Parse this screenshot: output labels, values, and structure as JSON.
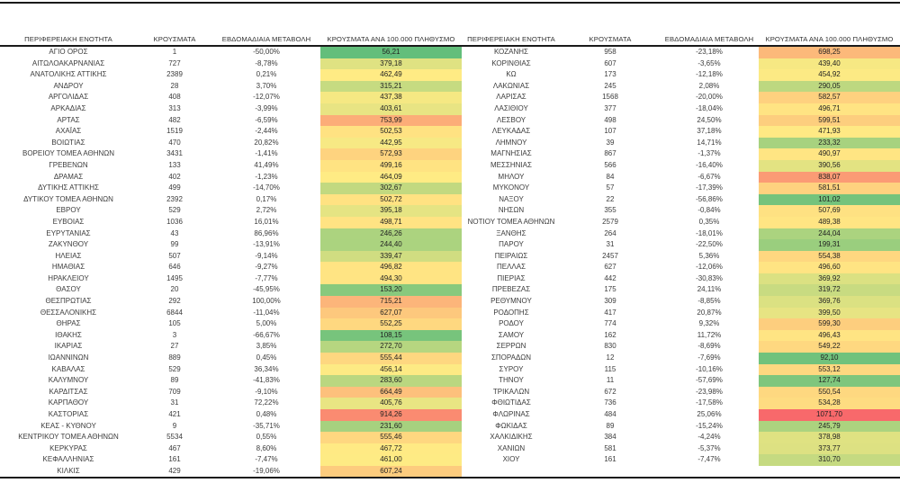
{
  "page": {
    "background": "#ffffff",
    "rule_color": "#1a1a1a"
  },
  "chart_data": {
    "type": "table",
    "columns": [
      "ΠΕΡΙΦΕΡΕΙΑΚΗ ΕΝΟΤΗΤΑ",
      "ΚΡΟΥΣΜΑΤΑ",
      "ΕΒΔΟΜΑΔΙΑΙΑ ΜΕΤΑΒΟΛΗ",
      "ΚΡΟΥΣΜΑΤΑ ΑΝΑ 100.000 ΠΛΗΘΥΣΜΟ"
    ],
    "color_scale": {
      "applies_to_column": "ΚΡΟΥΣΜΑΤΑ ΑΝΑ 100.000 ΠΛΗΘΥΣΜΟ",
      "min_color": "#63BE7B",
      "mid_color": "#FFEB84",
      "max_color": "#F8696B"
    },
    "tables": [
      {
        "rows": [
          [
            "ΑΓΙΟ ΟΡΟΣ",
            1,
            "-50,00%",
            "56,21"
          ],
          [
            "ΑΙΤΩΛΟΑΚΑΡΝΑΝΙΑΣ",
            727,
            "-8,78%",
            "379,18"
          ],
          [
            "ΑΝΑΤΟΛΙΚΗΣ ΑΤΤΙΚΗΣ",
            2389,
            "0,21%",
            "462,49"
          ],
          [
            "ΑΝΔΡΟΥ",
            28,
            "3,70%",
            "315,21"
          ],
          [
            "ΑΡΓΟΛΙΔΑΣ",
            408,
            "-12,07%",
            "437,38"
          ],
          [
            "ΑΡΚΑΔΙΑΣ",
            313,
            "-3,99%",
            "403,61"
          ],
          [
            "ΑΡΤΑΣ",
            482,
            "-6,59%",
            "753,99"
          ],
          [
            "ΑΧΑΪΑΣ",
            1519,
            "-2,44%",
            "502,53"
          ],
          [
            "ΒΟΙΩΤΙΑΣ",
            470,
            "20,82%",
            "442,95"
          ],
          [
            "ΒΟΡΕΙΟΥ ΤΟΜΕΑ ΑΘΗΝΩΝ",
            3431,
            "-1,41%",
            "572,93"
          ],
          [
            "ΓΡΕΒΕΝΩΝ",
            133,
            "41,49%",
            "499,16"
          ],
          [
            "ΔΡΑΜΑΣ",
            402,
            "-1,23%",
            "464,09"
          ],
          [
            "ΔΥΤΙΚΗΣ ΑΤΤΙΚΗΣ",
            499,
            "-14,70%",
            "302,67"
          ],
          [
            "ΔΥΤΙΚΟΥ ΤΟΜΕΑ ΑΘΗΝΩΝ",
            2392,
            "0,17%",
            "502,72"
          ],
          [
            "ΕΒΡΟΥ",
            529,
            "2,72%",
            "395,18"
          ],
          [
            "ΕΥΒΟΙΑΣ",
            1036,
            "16,01%",
            "498,71"
          ],
          [
            "ΕΥΡΥΤΑΝΙΑΣ",
            43,
            "86,96%",
            "246,26"
          ],
          [
            "ΖΑΚΥΝΘΟΥ",
            99,
            "-13,91%",
            "244,40"
          ],
          [
            "ΗΛΕΙΑΣ",
            507,
            "-9,14%",
            "339,47"
          ],
          [
            "ΗΜΑΘΙΑΣ",
            646,
            "-9,27%",
            "496,82"
          ],
          [
            "ΗΡΑΚΛΕΙΟΥ",
            1495,
            "-7,77%",
            "494,30"
          ],
          [
            "ΘΑΣΟΥ",
            20,
            "-45,95%",
            "153,20"
          ],
          [
            "ΘΕΣΠΡΩΤΙΑΣ",
            292,
            "100,00%",
            "715,21"
          ],
          [
            "ΘΕΣΣΑΛΟΝΙΚΗΣ",
            6844,
            "-11,04%",
            "627,07"
          ],
          [
            "ΘΗΡΑΣ",
            105,
            "5,00%",
            "552,25"
          ],
          [
            "ΙΘΑΚΗΣ",
            3,
            "-66,67%",
            "108,15"
          ],
          [
            "ΙΚΑΡΙΑΣ",
            27,
            "3,85%",
            "272,70"
          ],
          [
            "ΙΩΑΝΝΙΝΩΝ",
            889,
            "0,45%",
            "555,44"
          ],
          [
            "ΚΑΒΑΛΑΣ",
            529,
            "36,34%",
            "456,14"
          ],
          [
            "ΚΑΛΥΜΝΟΥ",
            89,
            "-41,83%",
            "283,60"
          ],
          [
            "ΚΑΡΔΙΤΣΑΣ",
            709,
            "-9,10%",
            "664,49"
          ],
          [
            "ΚΑΡΠΑΘΟΥ",
            31,
            "72,22%",
            "405,76"
          ],
          [
            "ΚΑΣΤΟΡΙΑΣ",
            421,
            "0,48%",
            "914,26"
          ],
          [
            "ΚΕΑΣ - ΚΥΘΝΟΥ",
            9,
            "-35,71%",
            "231,60"
          ],
          [
            "ΚΕΝΤΡΙΚΟΥ ΤΟΜΕΑ ΑΘΗΝΩΝ",
            5534,
            "0,55%",
            "555,46"
          ],
          [
            "ΚΕΡΚΥΡΑΣ",
            467,
            "8,60%",
            "467,72"
          ],
          [
            "ΚΕΦΑΛΛΗΝΙΑΣ",
            161,
            "-7,47%",
            "461,00"
          ],
          [
            "ΚΙΛΚΙΣ",
            429,
            "-19,06%",
            "607,24"
          ]
        ]
      },
      {
        "rows": [
          [
            "ΚΟΖΑΝΗΣ",
            958,
            "-23,18%",
            "698,25"
          ],
          [
            "ΚΟΡΙΝΘΙΑΣ",
            607,
            "-3,65%",
            "439,40"
          ],
          [
            "ΚΩ",
            173,
            "-12,18%",
            "454,92"
          ],
          [
            "ΛΑΚΩΝΙΑΣ",
            245,
            "2,08%",
            "290,05"
          ],
          [
            "ΛΑΡΙΣΑΣ",
            1568,
            "-20,00%",
            "582,57"
          ],
          [
            "ΛΑΣΙΘΙΟΥ",
            377,
            "-18,04%",
            "496,71"
          ],
          [
            "ΛΕΣΒΟΥ",
            498,
            "24,50%",
            "599,51"
          ],
          [
            "ΛΕΥΚΑΔΑΣ",
            107,
            "37,18%",
            "471,93"
          ],
          [
            "ΛΗΜΝΟΥ",
            39,
            "14,71%",
            "233,32"
          ],
          [
            "ΜΑΓΝΗΣΙΑΣ",
            867,
            "-1,37%",
            "490,97"
          ],
          [
            "ΜΕΣΣΗΝΙΑΣ",
            566,
            "-16,40%",
            "390,56"
          ],
          [
            "ΜΗΛΟΥ",
            84,
            "-6,67%",
            "838,07"
          ],
          [
            "ΜΥΚΟΝΟΥ",
            57,
            "-17,39%",
            "581,51"
          ],
          [
            "ΝΑΞΟΥ",
            22,
            "-56,86%",
            "101,02"
          ],
          [
            "ΝΗΣΩΝ",
            355,
            "-0,84%",
            "507,69"
          ],
          [
            "ΝΟΤΙΟΥ ΤΟΜΕΑ ΑΘΗΝΩΝ",
            2579,
            "0,35%",
            "489,38"
          ],
          [
            "ΞΑΝΘΗΣ",
            264,
            "-18,01%",
            "244,04"
          ],
          [
            "ΠΑΡΟΥ",
            31,
            "-22,50%",
            "199,31"
          ],
          [
            "ΠΕΙΡΑΙΩΣ",
            2457,
            "5,36%",
            "554,38"
          ],
          [
            "ΠΕΛΛΑΣ",
            627,
            "-12,06%",
            "496,60"
          ],
          [
            "ΠΙΕΡΙΑΣ",
            442,
            "-30,83%",
            "369,92"
          ],
          [
            "ΠΡΕΒΕΖΑΣ",
            175,
            "24,11%",
            "319,72"
          ],
          [
            "ΡΕΘΥΜΝΟΥ",
            309,
            "-8,85%",
            "369,76"
          ],
          [
            "ΡΟΔΟΠΗΣ",
            417,
            "20,87%",
            "399,50"
          ],
          [
            "ΡΟΔΟΥ",
            774,
            "9,32%",
            "599,30"
          ],
          [
            "ΣΑΜΟΥ",
            162,
            "11,72%",
            "496,43"
          ],
          [
            "ΣΕΡΡΩΝ",
            830,
            "-8,69%",
            "549,22"
          ],
          [
            "ΣΠΟΡΑΔΩΝ",
            12,
            "-7,69%",
            "92,10"
          ],
          [
            "ΣΥΡΟΥ",
            115,
            "-10,16%",
            "553,12"
          ],
          [
            "ΤΗΝΟΥ",
            11,
            "-57,69%",
            "127,74"
          ],
          [
            "ΤΡΙΚΑΛΩΝ",
            672,
            "-23,98%",
            "550,54"
          ],
          [
            "ΦΘΙΩΤΙΔΑΣ",
            736,
            "-17,58%",
            "534,28"
          ],
          [
            "ΦΛΩΡΙΝΑΣ",
            484,
            "25,06%",
            "1071,70"
          ],
          [
            "ΦΩΚΙΔΑΣ",
            89,
            "-15,24%",
            "245,79"
          ],
          [
            "ΧΑΛΚΙΔΙΚΗΣ",
            384,
            "-4,24%",
            "378,98"
          ],
          [
            "ΧΑΝΙΩΝ",
            581,
            "-5,37%",
            "373,77"
          ],
          [
            "ΧΙΟΥ",
            161,
            "-7,47%",
            "310,70"
          ]
        ]
      }
    ]
  }
}
